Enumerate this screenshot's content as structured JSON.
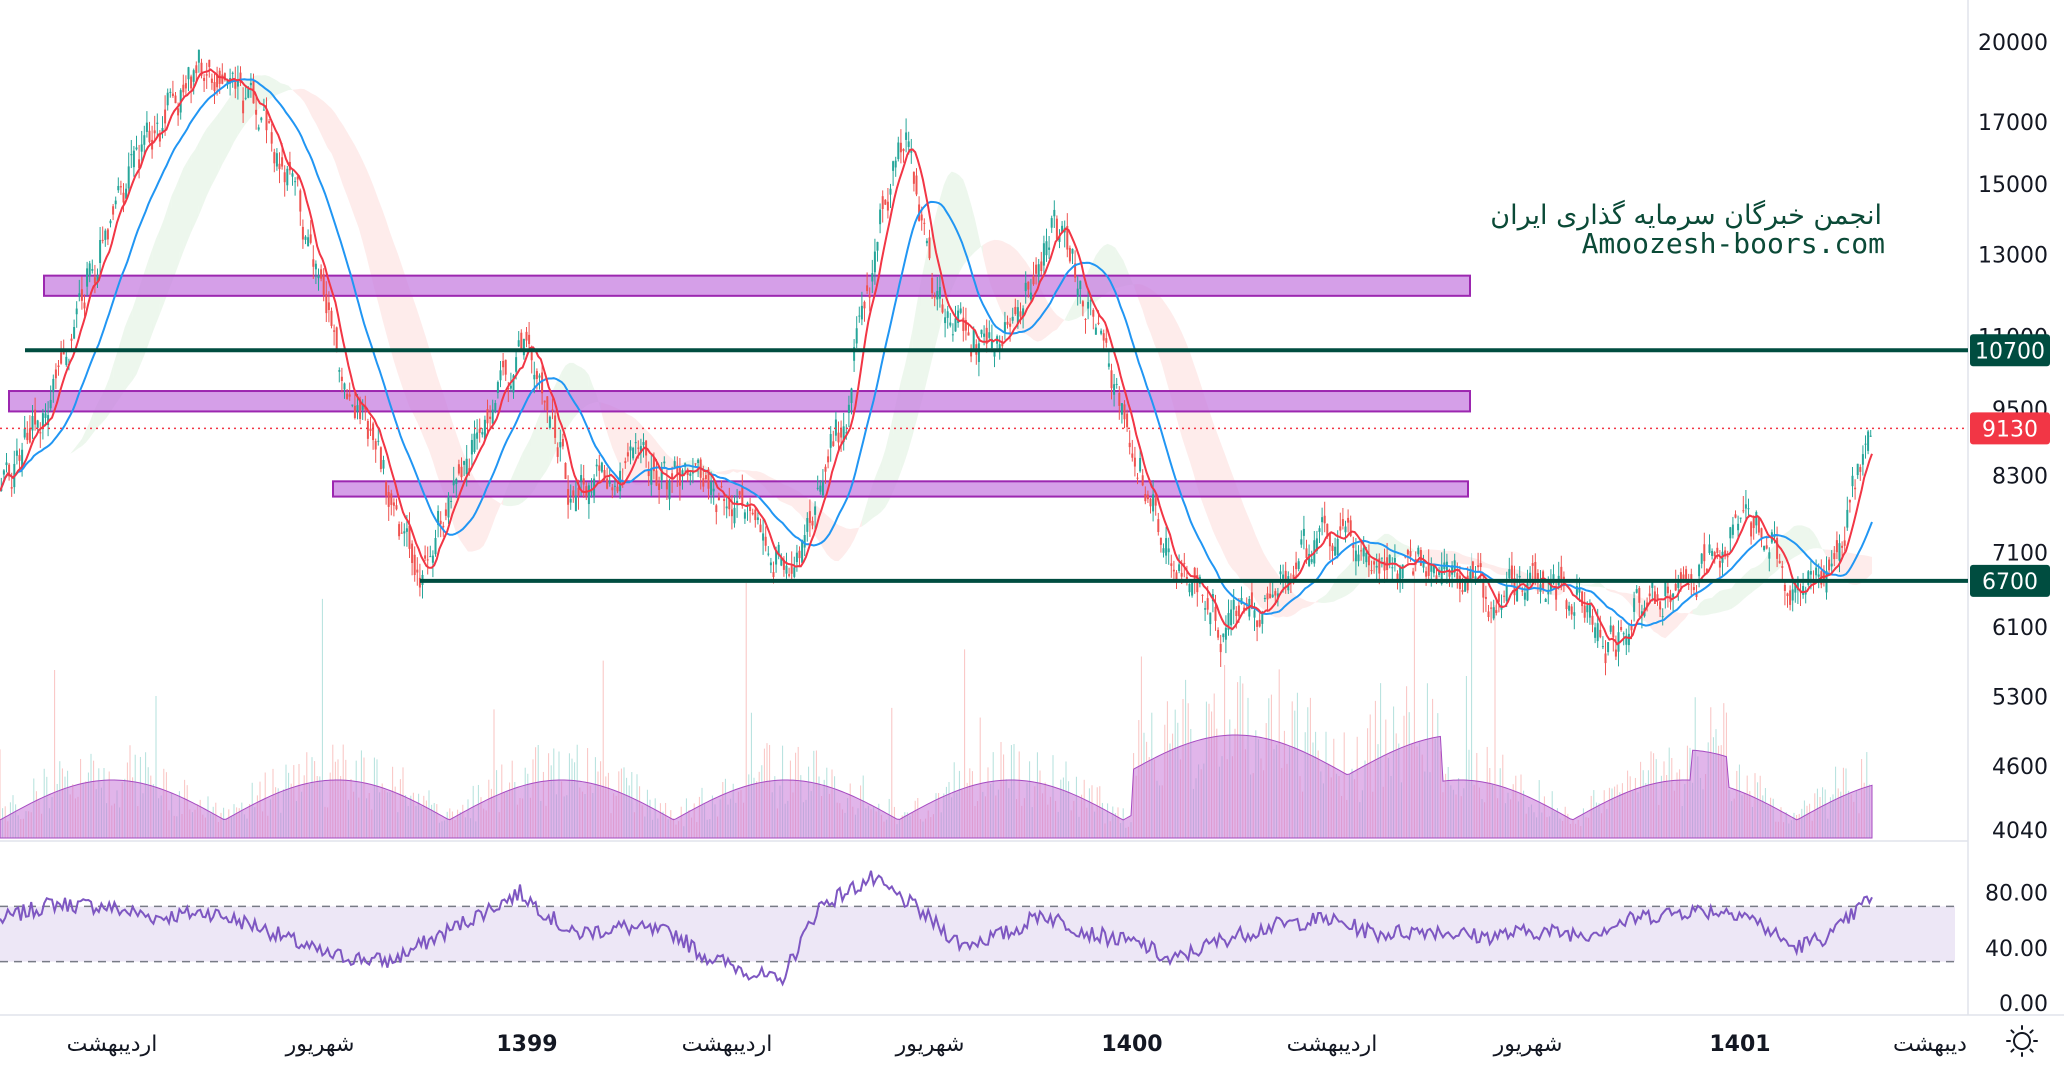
{
  "watermark": {
    "line1": "انجمن خبرگان سرمایه گذاری ایران",
    "line2": "Amoozesh-boors.com"
  },
  "colors": {
    "candle_up": "#26a69a",
    "candle_down": "#ef5350",
    "ma_fast": "#f23645",
    "ma_slow": "#2196f3",
    "zone_fill": "#c77fe0",
    "zone_stroke": "#9c27b0",
    "level_line": "#004d40",
    "volume": "#c878d8",
    "rsi": "#7e57c2",
    "rsi_band": "#ede7f6"
  },
  "icons": {
    "settings": "sun-gear-icon"
  },
  "chart_data": [
    {
      "type": "candlestick",
      "panel": "price",
      "scale": "log",
      "y_ticks": [
        4040,
        4600,
        5300,
        6100,
        7100,
        8300,
        9500,
        11000,
        13000,
        15000,
        17000,
        20000
      ],
      "y_tick_labels": [
        "4040",
        "4600",
        "5300",
        "6100",
        "7100",
        "8300",
        "9500",
        "11000",
        "13000",
        "15000",
        "17000",
        "20000"
      ],
      "ylim": [
        4040,
        20500
      ],
      "x_labels": [
        "اردیبهشت",
        "شهریور",
        "1399",
        "اردیبهشت",
        "شهریور",
        "1400",
        "اردیبهشت",
        "شهریور",
        "1401",
        "دیبهشت"
      ],
      "bold_x_labels": [
        "1399",
        "1400",
        "1401"
      ],
      "price_path": [
        [
          0,
          8000
        ],
        [
          40,
          9700
        ],
        [
          100,
          15500
        ],
        [
          160,
          19500
        ],
        [
          220,
          16000
        ],
        [
          260,
          10500
        ],
        [
          320,
          6700
        ],
        [
          360,
          8600
        ],
        [
          405,
          10800
        ],
        [
          440,
          7800
        ],
        [
          480,
          8600
        ],
        [
          520,
          8200
        ],
        [
          570,
          7800
        ],
        [
          610,
          6700
        ],
        [
          650,
          9500
        ],
        [
          695,
          16500
        ],
        [
          720,
          12000
        ],
        [
          770,
          10500
        ],
        [
          810,
          13800
        ],
        [
          850,
          10300
        ],
        [
          900,
          7200
        ],
        [
          940,
          6100
        ],
        [
          980,
          6600
        ],
        [
          1020,
          7500
        ],
        [
          1060,
          6900
        ],
        [
          1100,
          7000
        ],
        [
          1150,
          6500
        ],
        [
          1200,
          6700
        ],
        [
          1240,
          5950
        ],
        [
          1280,
          6600
        ],
        [
          1310,
          7000
        ],
        [
          1355,
          7600
        ],
        [
          1380,
          6500
        ],
        [
          1410,
          6900
        ],
        [
          1440,
          9130
        ]
      ],
      "current_price": "9130",
      "levels": [
        {
          "label": "10700",
          "value": 10700
        },
        {
          "label": "6700",
          "value": 6700
        }
      ],
      "zones": [
        {
          "low": 11950,
          "high": 12450,
          "from": 44,
          "to": 1470
        },
        {
          "low": 9450,
          "high": 9850,
          "from": 9,
          "to": 1470
        },
        {
          "low": 7950,
          "high": 8200,
          "from": 333,
          "to": 1468
        }
      ],
      "series": [
        "candles",
        "ma-fast",
        "ma-slow",
        "ichimoku-cloud",
        "volume"
      ]
    },
    {
      "type": "line",
      "panel": "rsi",
      "y_ticks": [
        0,
        40,
        80
      ],
      "y_tick_labels": [
        "0.00",
        "40.00",
        "80.00"
      ],
      "ylim": [
        0,
        100
      ],
      "bands": [
        30,
        70
      ],
      "values": [
        [
          0,
          60
        ],
        [
          40,
          72
        ],
        [
          80,
          70
        ],
        [
          120,
          62
        ],
        [
          160,
          66
        ],
        [
          200,
          55
        ],
        [
          250,
          35
        ],
        [
          300,
          30
        ],
        [
          350,
          55
        ],
        [
          400,
          80
        ],
        [
          440,
          50
        ],
        [
          480,
          55
        ],
        [
          520,
          50
        ],
        [
          540,
          35
        ],
        [
          570,
          25
        ],
        [
          600,
          15
        ],
        [
          630,
          70
        ],
        [
          670,
          90
        ],
        [
          700,
          72
        ],
        [
          740,
          42
        ],
        [
          780,
          52
        ],
        [
          800,
          65
        ],
        [
          840,
          50
        ],
        [
          880,
          42
        ],
        [
          900,
          30
        ],
        [
          940,
          46
        ],
        [
          980,
          56
        ],
        [
          1020,
          61
        ],
        [
          1060,
          50
        ],
        [
          1100,
          53
        ],
        [
          1140,
          48
        ],
        [
          1180,
          52
        ],
        [
          1220,
          50
        ],
        [
          1260,
          62
        ],
        [
          1300,
          67
        ],
        [
          1340,
          66
        ],
        [
          1380,
          40
        ],
        [
          1410,
          50
        ],
        [
          1440,
          78
        ]
      ]
    }
  ]
}
